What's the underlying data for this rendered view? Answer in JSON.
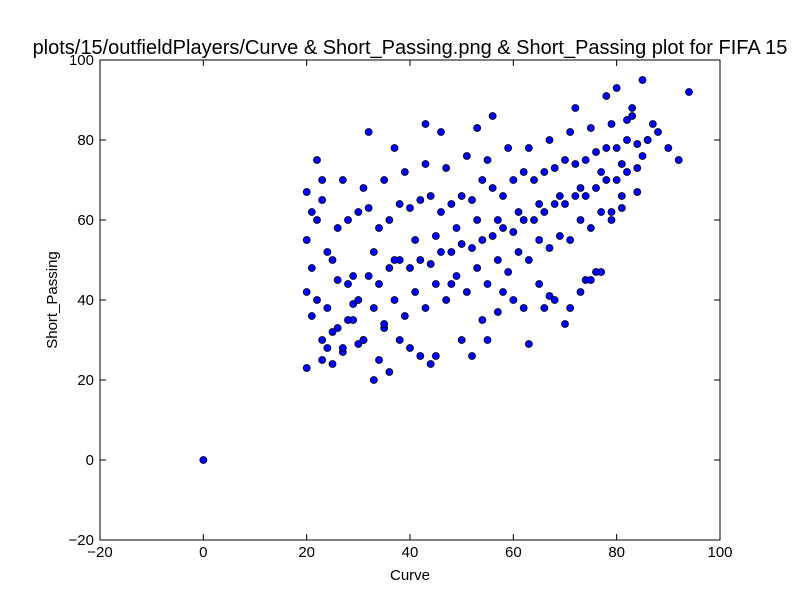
{
  "chart_data": {
    "type": "scatter",
    "title": "plots/15/outfieldPlayers/Curve & Short_Passing.png & Short_Passing plot for FIFA 15",
    "xlabel": "Curve",
    "ylabel": "Short_Passing",
    "xlim": [
      -20,
      100
    ],
    "ylim": [
      -20,
      100
    ],
    "xticks": [
      "−20",
      "0",
      "20",
      "40",
      "60",
      "80",
      "100"
    ],
    "yticks": [
      "−20",
      "0",
      "20",
      "40",
      "60",
      "80",
      "100"
    ],
    "xtick_values": [
      -20,
      0,
      20,
      40,
      60,
      80,
      100
    ],
    "ytick_values": [
      -20,
      0,
      20,
      40,
      60,
      80,
      100
    ],
    "grid": false,
    "marker_color": "#0000ff",
    "marker_edge": "#000000",
    "series": [
      {
        "x": [
          0,
          20,
          20,
          21,
          22,
          23,
          23,
          24,
          25,
          26,
          27,
          28,
          29,
          30,
          31,
          32,
          33,
          34,
          35,
          36,
          37,
          38,
          40,
          42,
          43,
          44,
          45,
          46,
          48,
          50,
          52,
          53,
          54,
          55,
          56,
          57,
          58,
          60,
          62,
          63,
          65,
          66,
          67,
          68,
          70,
          71,
          72,
          73,
          74,
          75,
          76,
          77,
          78,
          79,
          80,
          81,
          82,
          83,
          84,
          85,
          86,
          87,
          88,
          90,
          92,
          94,
          20,
          22,
          24,
          26,
          28,
          30,
          32,
          34,
          36,
          38,
          40,
          42,
          44,
          46,
          48,
          50,
          52,
          54,
          56,
          58,
          60,
          62,
          64,
          66,
          68,
          70,
          72,
          74,
          76,
          78,
          80,
          82,
          84,
          86,
          20,
          22,
          24,
          26,
          28,
          30,
          32,
          34,
          36,
          38,
          40,
          42,
          44,
          46,
          48,
          50,
          52,
          54,
          56,
          58,
          60,
          62,
          64,
          66,
          68,
          70,
          72,
          74,
          76,
          78,
          80,
          82,
          84,
          21,
          25,
          29,
          33,
          37,
          41,
          45,
          49,
          53,
          57,
          61,
          65,
          69,
          73,
          77,
          81,
          85,
          21,
          25,
          29,
          33,
          37,
          41,
          45,
          49,
          53,
          57,
          61,
          65,
          69,
          73,
          77,
          81,
          23,
          27,
          31,
          35,
          39,
          43,
          47,
          51,
          55,
          59,
          63,
          67,
          71,
          75,
          79,
          83,
          23,
          27,
          31,
          35,
          39,
          43,
          47,
          51,
          55,
          59,
          63,
          67,
          71,
          75,
          79
        ],
        "y": [
          0,
          23,
          67,
          62,
          75,
          70,
          25,
          28,
          24,
          33,
          27,
          35,
          39,
          29,
          30,
          82,
          20,
          25,
          33,
          22,
          78,
          30,
          28,
          26,
          84,
          24,
          26,
          82,
          44,
          30,
          26,
          83,
          35,
          30,
          86,
          37,
          42,
          40,
          38,
          29,
          44,
          38,
          41,
          40,
          34,
          38,
          88,
          42,
          45,
          45,
          47,
          47,
          91,
          60,
          93,
          63,
          85,
          88,
          67,
          95,
          80,
          84,
          82,
          78,
          75,
          92,
          55,
          60,
          52,
          58,
          60,
          62,
          63,
          58,
          60,
          64,
          63,
          65,
          66,
          62,
          64,
          66,
          65,
          70,
          68,
          66,
          70,
          72,
          70,
          72,
          73,
          75,
          74,
          75,
          77,
          78,
          78,
          80,
          79,
          80,
          42,
          40,
          38,
          45,
          44,
          40,
          46,
          44,
          48,
          50,
          48,
          50,
          49,
          52,
          52,
          54,
          53,
          55,
          56,
          58,
          57,
          60,
          60,
          62,
          64,
          64,
          66,
          66,
          68,
          70,
          70,
          72,
          73,
          48,
          50,
          46,
          52,
          50,
          55,
          56,
          58,
          60,
          60,
          62,
          64,
          66,
          68,
          72,
          74,
          76,
          36,
          32,
          35,
          38,
          40,
          42,
          44,
          46,
          48,
          50,
          52,
          55,
          56,
          60,
          62,
          66,
          65,
          70,
          68,
          70,
          72,
          74,
          73,
          76,
          75,
          78,
          78,
          80,
          82,
          83,
          84,
          86,
          30,
          28,
          30,
          34,
          36,
          38,
          40,
          42,
          44,
          47,
          50,
          53,
          55,
          58,
          62
        ]
      }
    ]
  }
}
